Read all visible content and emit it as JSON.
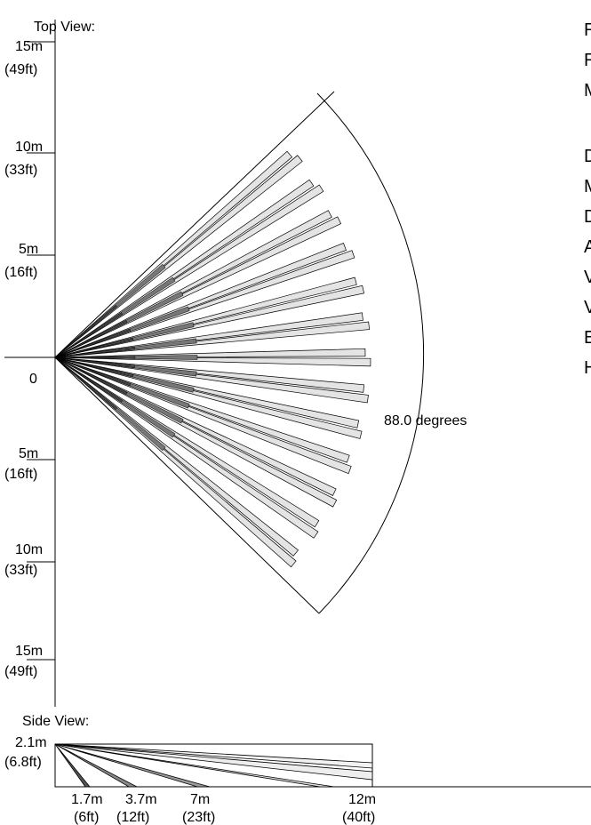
{
  "top_view": {
    "label": "Top View:",
    "origin_label": "0",
    "upper_ticks": [
      {
        "m": "15m",
        "ft": "(49ft)"
      },
      {
        "m": "10m",
        "ft": "(33ft)"
      },
      {
        "m": "5m",
        "ft": "(16ft)"
      }
    ],
    "lower_ticks": [
      {
        "m": "5m",
        "ft": "(16ft)"
      },
      {
        "m": "10m",
        "ft": "(33ft)"
      },
      {
        "m": "15m",
        "ft": "(49ft)"
      }
    ],
    "angle_label": "88.0 degrees",
    "coverage_angle_deg": 88.0,
    "beam_count": 13
  },
  "side_view": {
    "label": "Side View:",
    "height_m": "2.1m",
    "height_ft": "(6.8ft)",
    "distances": [
      {
        "m": "1.7m",
        "ft": "(6ft)"
      },
      {
        "m": "3.7m",
        "ft": "(12ft)"
      },
      {
        "m": "7m",
        "ft": "(23ft)"
      },
      {
        "m": "12m",
        "ft": "(40ft)"
      }
    ]
  },
  "side_panel_letters": [
    "R",
    "R",
    "M",
    "D",
    "M",
    "D",
    "A",
    "V",
    "V",
    "E",
    "H"
  ]
}
